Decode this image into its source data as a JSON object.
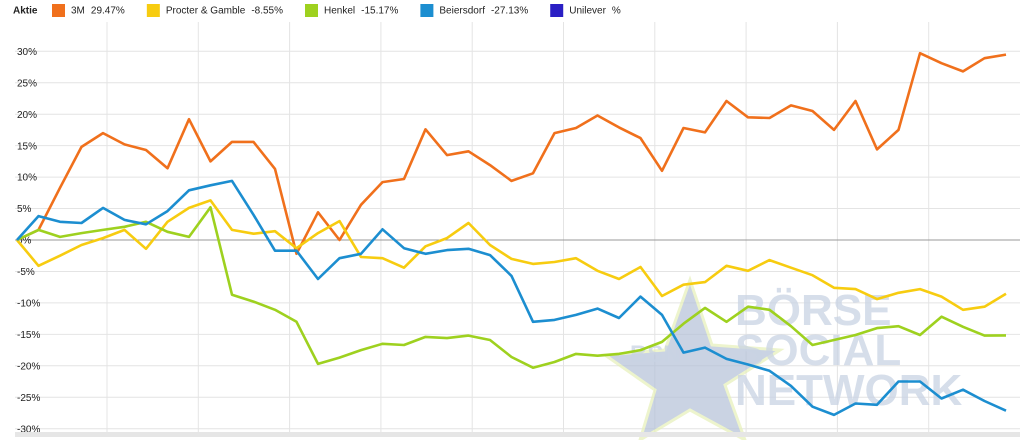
{
  "chart_data": {
    "type": "line",
    "legend_title": "Aktie",
    "watermark": {
      "logo": "BSN",
      "lines": [
        "BÖRSE",
        "SOCIAL",
        "NETWORK"
      ]
    },
    "ylim": [
      -31,
      31
    ],
    "yticks": [
      {
        "value": 30,
        "label": "30%"
      },
      {
        "value": 25,
        "label": "25%"
      },
      {
        "value": 20,
        "label": "20%"
      },
      {
        "value": 15,
        "label": "15%"
      },
      {
        "value": 10,
        "label": "10%"
      },
      {
        "value": 5,
        "label": "5%"
      },
      {
        "value": 0,
        "label": "0%"
      },
      {
        "value": -5,
        "label": "-5%"
      },
      {
        "value": -10,
        "label": "-10%"
      },
      {
        "value": -15,
        "label": "-15%"
      },
      {
        "value": -20,
        "label": "-20%"
      },
      {
        "value": -25,
        "label": "-25%"
      },
      {
        "value": -30,
        "label": "-30%"
      }
    ],
    "grid": true,
    "series": [
      {
        "name": "3M",
        "change": "29.47%",
        "color": "#f0701c",
        "values": [
          0,
          1.6,
          8.3,
          14.8,
          17.0,
          15.2,
          14.3,
          11.4,
          19.2,
          12.5,
          15.6,
          15.6,
          11.3,
          -2.2,
          4.4,
          0,
          5.6,
          9.2,
          9.7,
          17.6,
          13.5,
          14.1,
          11.9,
          9.4,
          10.6,
          17.0,
          17.8,
          19.8,
          17.9,
          16.2,
          11.0,
          17.8,
          17.1,
          22.1,
          19.5,
          19.4,
          21.4,
          20.5,
          17.5,
          22.1,
          14.4,
          17.5,
          29.7,
          28.1,
          26.8,
          28.9,
          29.47
        ]
      },
      {
        "name": "Procter & Gamble",
        "change": "-8.55%",
        "color": "#f7cc10",
        "values": [
          0,
          -4.1,
          -2.5,
          -0.8,
          0.3,
          1.6,
          -1.4,
          2.9,
          5.1,
          6.3,
          1.6,
          1.0,
          1.4,
          -1.3,
          1.1,
          3.0,
          -2.7,
          -2.9,
          -4.4,
          -1.0,
          0.3,
          2.7,
          -0.8,
          -3.0,
          -3.8,
          -3.5,
          -2.9,
          -4.9,
          -6.2,
          -4.3,
          -8.9,
          -7.1,
          -6.7,
          -4.1,
          -4.9,
          -3.2,
          -4.4,
          -5.6,
          -7.6,
          -7.8,
          -9.4,
          -8.4,
          -7.8,
          -9.0,
          -11.1,
          -10.6,
          -8.55
        ]
      },
      {
        "name": "Henkel",
        "change": "-15.17%",
        "color": "#9ed11f",
        "values": [
          0,
          1.6,
          0.5,
          1.1,
          1.6,
          2.1,
          2.9,
          1.3,
          0.5,
          5.2,
          -8.7,
          -9.8,
          -11.1,
          -13.0,
          -19.7,
          -18.7,
          -17.5,
          -16.5,
          -16.7,
          -15.4,
          -15.6,
          -15.2,
          -15.9,
          -18.6,
          -20.3,
          -19.4,
          -18.1,
          -18.4,
          -18.1,
          -17.5,
          -16.2,
          -13.3,
          -10.8,
          -13.0,
          -10.6,
          -11.1,
          -13.7,
          -16.7,
          -15.9,
          -15.1,
          -14.0,
          -13.7,
          -15.1,
          -12.2,
          -13.8,
          -15.2,
          -15.17
        ]
      },
      {
        "name": "Beiersdorf",
        "change": "-27.13%",
        "color": "#1c8ed0",
        "values": [
          0,
          3.8,
          2.9,
          2.7,
          5.1,
          3.2,
          2.5,
          4.6,
          7.9,
          8.7,
          9.4,
          4.0,
          -1.7,
          -1.7,
          -6.2,
          -2.9,
          -2.2,
          1.7,
          -1.3,
          -2.2,
          -1.6,
          -1.4,
          -2.4,
          -5.7,
          -13.0,
          -12.7,
          -11.9,
          -10.9,
          -12.4,
          -9.0,
          -11.9,
          -17.9,
          -17.1,
          -18.9,
          -19.8,
          -20.8,
          -23.2,
          -26.5,
          -27.8,
          -26.0,
          -26.2,
          -22.5,
          -22.5,
          -25.2,
          -23.8,
          -25.6,
          -27.13
        ]
      },
      {
        "name": "Unilever",
        "change": "%",
        "color": "#2a1fc4",
        "values": []
      }
    ]
  }
}
